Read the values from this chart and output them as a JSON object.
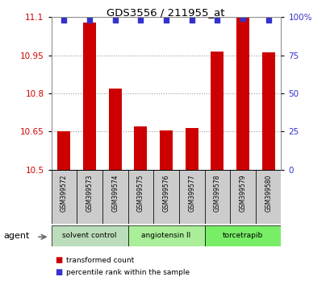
{
  "title": "GDS3556 / 211955_at",
  "samples": [
    "GSM399572",
    "GSM399573",
    "GSM399574",
    "GSM399575",
    "GSM399576",
    "GSM399577",
    "GSM399578",
    "GSM399579",
    "GSM399580"
  ],
  "bar_values": [
    10.65,
    11.08,
    10.82,
    10.67,
    10.655,
    10.665,
    10.965,
    11.1,
    10.96
  ],
  "percentile_values": [
    98,
    98,
    98,
    98,
    98,
    98,
    98,
    99,
    98
  ],
  "ylim_left": [
    10.5,
    11.1
  ],
  "ylim_right": [
    0,
    100
  ],
  "yticks_left": [
    10.5,
    10.65,
    10.8,
    10.95,
    11.1
  ],
  "ytick_labels_left": [
    "10.5",
    "10.65",
    "10.8",
    "10.95",
    "11.1"
  ],
  "yticks_right": [
    0,
    25,
    50,
    75,
    100
  ],
  "ytick_labels_right": [
    "0",
    "25",
    "50",
    "75",
    "100%"
  ],
  "bar_color": "#cc0000",
  "percentile_color": "#3333cc",
  "bar_width": 0.5,
  "groups": [
    {
      "label": "solvent control",
      "start": 0,
      "end": 3,
      "color": "#bbddbb"
    },
    {
      "label": "angiotensin II",
      "start": 3,
      "end": 6,
      "color": "#aaee99"
    },
    {
      "label": "torcetrapib",
      "start": 6,
      "end": 9,
      "color": "#77ee66"
    }
  ],
  "agent_label": "agent",
  "legend_items": [
    {
      "label": "transformed count",
      "color": "#cc0000"
    },
    {
      "label": "percentile rank within the sample",
      "color": "#3333cc"
    }
  ],
  "grid_color": "#999999",
  "sample_box_color": "#cccccc",
  "baseline": 10.5
}
